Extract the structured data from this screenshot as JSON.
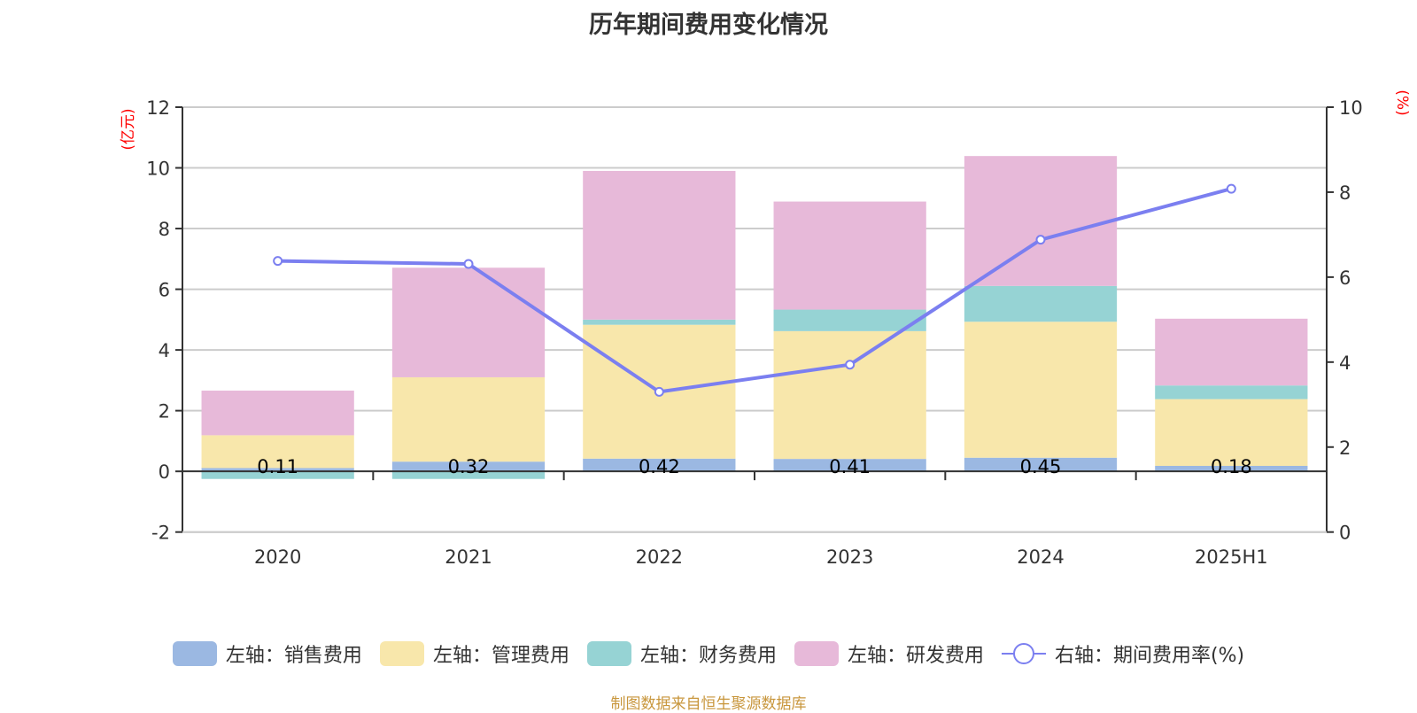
{
  "title": "历年期间费用变化情况",
  "source": "制图数据来自恒生聚源数据库",
  "colors": {
    "sales": "#9bb8e2",
    "admin": "#f8e7ab",
    "finance": "#96d3d4",
    "rnd": "#e7b9d9",
    "rate": "#7b7ff0",
    "unit": "#ff0000",
    "source": "#c8963c"
  },
  "legend": [
    {
      "label": "左轴：销售费用",
      "key": "sales",
      "type": "bar"
    },
    {
      "label": "左轴：管理费用",
      "key": "admin",
      "type": "bar"
    },
    {
      "label": "左轴：财务费用",
      "key": "finance",
      "type": "bar"
    },
    {
      "label": "左轴：研发费用",
      "key": "rnd",
      "type": "bar"
    },
    {
      "label": "右轴：期间费用率(%)",
      "key": "rate",
      "type": "line"
    }
  ],
  "chart_data": {
    "type": "bar",
    "title": "历年期间费用变化情况",
    "categories": [
      "2020",
      "2021",
      "2022",
      "2023",
      "2024",
      "2025H1"
    ],
    "series": [
      {
        "name": "左轴：销售费用",
        "key": "sales",
        "axis": "left",
        "stack": true,
        "values": [
          0.11,
          0.32,
          0.42,
          0.41,
          0.45,
          0.18
        ],
        "labels": [
          "0.11",
          "0.32",
          "0.42",
          "0.41",
          "0.45",
          "0.18"
        ]
      },
      {
        "name": "左轴：管理费用",
        "key": "admin",
        "axis": "left",
        "stack": true,
        "values": [
          1.08,
          2.78,
          4.41,
          4.21,
          4.48,
          2.2
        ]
      },
      {
        "name": "左轴：财务费用",
        "key": "finance",
        "axis": "left",
        "stack": true,
        "values": [
          -0.25,
          -0.25,
          0.17,
          0.71,
          1.18,
          0.45
        ]
      },
      {
        "name": "左轴：研发费用",
        "key": "rnd",
        "axis": "left",
        "stack": true,
        "values": [
          1.47,
          3.61,
          4.9,
          3.56,
          4.28,
          2.2
        ]
      },
      {
        "name": "右轴：期间费用率(%)",
        "key": "rate",
        "axis": "right",
        "type": "line",
        "values": [
          6.38,
          6.31,
          3.3,
          3.94,
          6.88,
          8.08
        ]
      }
    ],
    "left_axis": {
      "label": "(亿元)",
      "ylim": [
        -2,
        12
      ],
      "ticks": [
        -2,
        0,
        2,
        4,
        6,
        8,
        10,
        12
      ]
    },
    "right_axis": {
      "label": "(%)",
      "ylim": [
        0,
        10
      ],
      "ticks": [
        0,
        2,
        4,
        6,
        8,
        10
      ]
    },
    "grid": true,
    "legend_position": "bottom"
  }
}
